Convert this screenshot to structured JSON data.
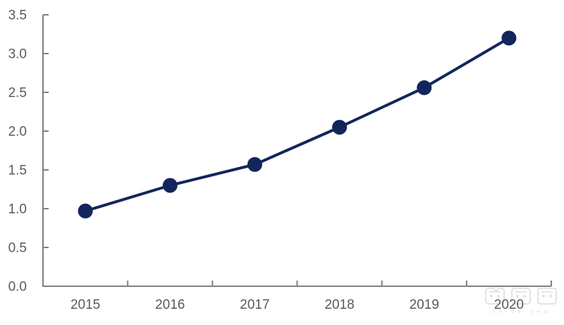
{
  "chart_data": {
    "type": "line",
    "categories": [
      "2015",
      "2016",
      "2017",
      "2018",
      "2019",
      "2020"
    ],
    "series": [
      {
        "name": "value",
        "values": [
          0.97,
          1.3,
          1.57,
          2.05,
          2.56,
          3.2
        ]
      }
    ],
    "title": "",
    "xlabel": "",
    "ylabel": "",
    "ylim": [
      0,
      3.5
    ],
    "ytick_step": 0.5,
    "ytick_labels": [
      "0.0",
      "0.5",
      "1.0",
      "1.5",
      "2.0",
      "2.5",
      "3.0",
      "3.5"
    ],
    "grid": false,
    "legend": "none",
    "line_color": "#12265C",
    "marker_color": "#12265C",
    "axis_color": "#808080",
    "tick_label_color": "#595959"
  },
  "watermark": {
    "sub_text": "z h i d x . c o m"
  }
}
